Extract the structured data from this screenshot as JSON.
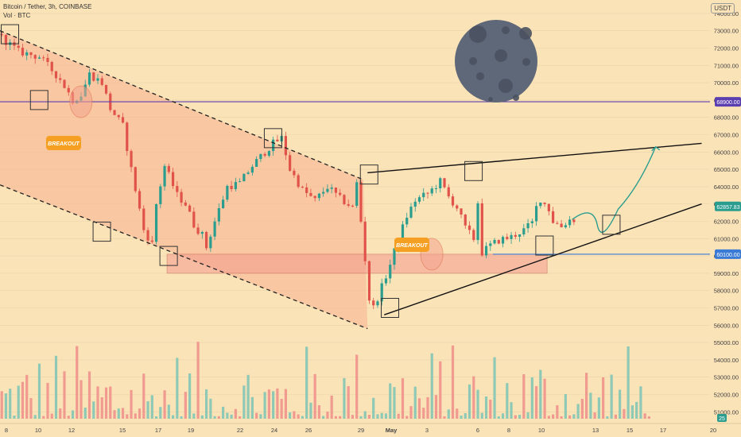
{
  "header": {
    "symbol": "Bitcoin / Tether, 3h, COINBASE",
    "volume": "Vol · BTC"
  },
  "currency_badge": "USDT",
  "colors": {
    "background": "#fbe3b8",
    "up": "#2a9d8f",
    "down": "#e0524a",
    "channel_fill": "#f7b28f",
    "zone_fill": "#f29c8f",
    "level_purple": "#5b3fb0",
    "level_blue": "#3a7bd5",
    "arrow": "#2a9d8f",
    "moon": "#5f6878",
    "breakout_badge": "#f5a023"
  },
  "annotations": {
    "breakout1": "BREAKOUT",
    "breakout2": "BREAKOUT"
  },
  "price_labels": {
    "current": "62857.83",
    "level_high": "68900.00",
    "level_low": "60100.00",
    "vol_badge": "25"
  },
  "chart_data": {
    "type": "candlestick",
    "title": "Bitcoin / Tether, 3h, COINBASE",
    "ylabel": "USDT",
    "ylim": [
      50500,
      75000
    ],
    "y_ticks": [
      74000,
      73000,
      72000,
      71000,
      70000,
      69000,
      68000,
      67000,
      66000,
      65000,
      64000,
      63000,
      62000,
      61000,
      60000,
      59000,
      58000,
      57000,
      56000,
      55000,
      54000,
      53000,
      52000,
      51000
    ],
    "x_ticks": [
      "8",
      "10",
      "12",
      "15",
      "17",
      "19",
      "22",
      "24",
      "26",
      "29",
      "May",
      "3",
      "6",
      "8",
      "10",
      "13",
      "15",
      "17",
      "20"
    ],
    "horizontal_levels": [
      68900,
      60100
    ],
    "last_price": 62857.83,
    "price_path": [
      [
        0,
        72800
      ],
      [
        5,
        71800
      ],
      [
        10,
        71500
      ],
      [
        15,
        70200
      ],
      [
        18,
        69000
      ],
      [
        20,
        69300
      ],
      [
        22,
        70500
      ],
      [
        25,
        70000
      ],
      [
        27,
        68500
      ],
      [
        30,
        67500
      ],
      [
        32,
        65000
      ],
      [
        35,
        61500
      ],
      [
        37,
        60700
      ],
      [
        38,
        63000
      ],
      [
        40,
        65200
      ],
      [
        43,
        63500
      ],
      [
        45,
        63000
      ],
      [
        47,
        61800
      ],
      [
        49,
        61200
      ],
      [
        50,
        60500
      ],
      [
        52,
        62000
      ],
      [
        55,
        64000
      ],
      [
        58,
        64200
      ],
      [
        61,
        65200
      ],
      [
        64,
        66000
      ],
      [
        66,
        66500
      ],
      [
        68,
        66800
      ],
      [
        70,
        65000
      ],
      [
        73,
        63800
      ],
      [
        76,
        63200
      ],
      [
        79,
        64000
      ],
      [
        82,
        63300
      ],
      [
        85,
        62800
      ],
      [
        86,
        64200
      ],
      [
        87,
        62000
      ],
      [
        88,
        59800
      ],
      [
        89,
        57500
      ],
      [
        90,
        57000
      ],
      [
        92,
        58200
      ],
      [
        94,
        59500
      ],
      [
        96,
        61000
      ],
      [
        98,
        62300
      ],
      [
        100,
        63200
      ],
      [
        103,
        63600
      ],
      [
        106,
        64300
      ],
      [
        108,
        63400
      ],
      [
        110,
        62800
      ],
      [
        112,
        61600
      ],
      [
        114,
        61000
      ],
      [
        115,
        63100
      ],
      [
        116,
        60200
      ],
      [
        118,
        60600
      ],
      [
        120,
        60900
      ],
      [
        123,
        61100
      ],
      [
        126,
        61500
      ],
      [
        128,
        61900
      ],
      [
        129,
        62800
      ],
      [
        130,
        63300
      ],
      [
        132,
        62700
      ],
      [
        133,
        62000
      ],
      [
        135,
        61700
      ],
      [
        137,
        62100
      ]
    ],
    "volume_ylim": [
      0,
      10
    ],
    "channel": {
      "upper": [
        [
          0,
          73000
        ],
        [
          87,
          64400
        ]
      ],
      "lower": [
        [
          0,
          64100
        ],
        [
          88,
          55800
        ]
      ]
    },
    "support_zone": [
      60100,
      59000
    ],
    "rising_wedge": {
      "upper": [
        [
          88,
          64800
        ],
        [
          168,
          66500
        ]
      ],
      "lower": [
        [
          92,
          56600
        ],
        [
          168,
          63000
        ]
      ]
    },
    "projection": [
      [
        137,
        62100
      ],
      [
        142,
        61800
      ],
      [
        148,
        62700
      ],
      [
        153,
        64000
      ],
      [
        157,
        66300
      ]
    ],
    "boxes_at": [
      [
        2,
        72800
      ],
      [
        9,
        69000
      ],
      [
        24,
        61400
      ],
      [
        40,
        60000
      ],
      [
        65,
        66800
      ],
      [
        88,
        64700
      ],
      [
        93,
        57000
      ],
      [
        113,
        64900
      ],
      [
        130,
        60600
      ],
      [
        146,
        61800
      ]
    ],
    "breakout_circles": [
      [
        19,
        68900
      ],
      [
        103,
        60100
      ]
    ]
  }
}
